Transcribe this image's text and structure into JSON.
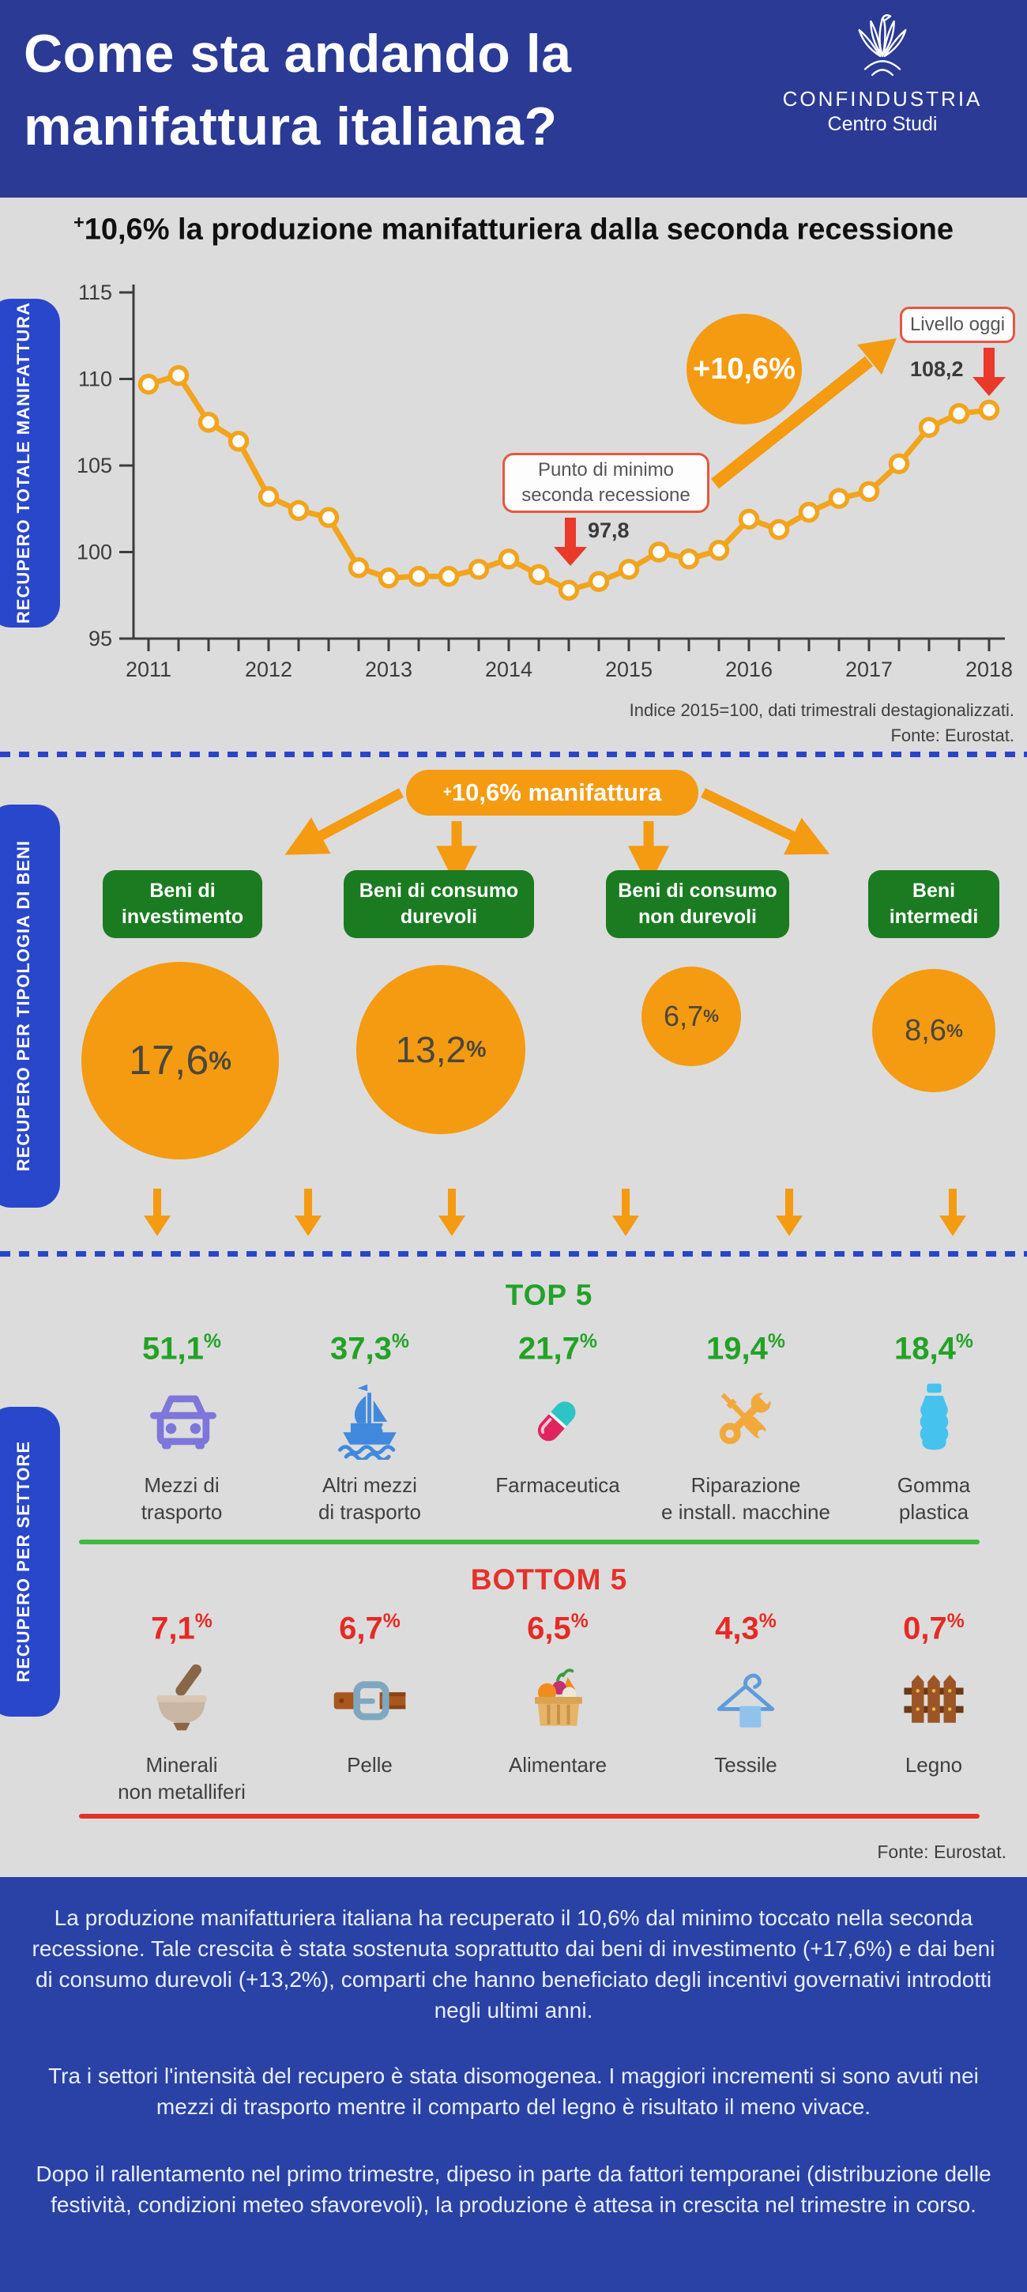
{
  "meta": {
    "plus_sign": "+",
    "percent_sign": "%"
  },
  "header": {
    "title_line1": "Come sta andando la",
    "title_line2": "manifattura italiana?",
    "logo_title": "CONFINDUSTRIA",
    "logo_subtitle": "Centro Studi"
  },
  "intro": {
    "headline": "10,6% la produzione manifatturiera dalla seconda recessione"
  },
  "chart_section": {
    "sidebar_label": "RECUPERO TOTALE MANIFATTURA",
    "min_label_line1": "Punto di minimo",
    "min_label_line2": "seconda recessione",
    "min_value": "97,8",
    "growth_badge": "+10,6%",
    "today_label": "Livello oggi",
    "today_value": "108,2",
    "note": "Indice 2015=100, dati trimestrali destagionalizzati.",
    "source": "Fonte: Eurostat."
  },
  "chart_data": {
    "type": "line",
    "title": "+10,6% la produzione manifatturiera dalla seconda recessione",
    "frequency": "quarterly",
    "x_start": "2011-Q1",
    "x_tick_labels": [
      "2011",
      "2012",
      "2013",
      "2014",
      "2015",
      "2016",
      "2017",
      "2018"
    ],
    "values": [
      109.7,
      110.2,
      107.5,
      106.4,
      103.2,
      102.4,
      102.0,
      99.1,
      98.5,
      98.6,
      98.6,
      99.0,
      99.6,
      98.7,
      97.8,
      98.3,
      99.0,
      100.0,
      99.6,
      100.1,
      101.9,
      101.3,
      102.3,
      103.1,
      103.5,
      105.1,
      107.2,
      108.0,
      108.2
    ],
    "y_ticks": [
      95,
      100,
      105,
      110,
      115
    ],
    "ylim": [
      95,
      115
    ],
    "grid": false,
    "legend": "none",
    "series_color": "#F2A41D",
    "annotations": {
      "min": {
        "x": "2014-Q3",
        "value": 97.8,
        "label": "Punto di minimo seconda recessione"
      },
      "today": {
        "x": "2018-Q1",
        "value": 108.2,
        "label": "Livello oggi"
      },
      "growth_pct": "+10,6%"
    }
  },
  "typology": {
    "sidebar_label": "RECUPERO PER TIPOLOGIA DI BENI",
    "root_label": "10,6% manifattura",
    "categories": [
      {
        "name_line1": "Beni di",
        "name_line2": "investimento",
        "value": "17,6"
      },
      {
        "name_line1": "Beni di consumo",
        "name_line2": "durevoli",
        "value": "13,2"
      },
      {
        "name_line1": "Beni di consumo",
        "name_line2": "non durevoli",
        "value": "6,7"
      },
      {
        "name_line1": "Beni",
        "name_line2": "intermedi",
        "value": "8,6"
      }
    ]
  },
  "sectors": {
    "sidebar_label": "RECUPERO PER SETTORE",
    "top_title": "TOP 5",
    "bottom_title": "BOTTOM 5",
    "source": "Fonte: Eurostat.",
    "top": [
      {
        "value": "51,1",
        "icon": "car-icon",
        "label_line1": "Mezzi di",
        "label_line2": "trasporto"
      },
      {
        "value": "37,3",
        "icon": "ship-icon",
        "label_line1": "Altri mezzi",
        "label_line2": "di trasporto"
      },
      {
        "value": "21,7",
        "icon": "pill-icon",
        "label_line1": "Farmaceutica",
        "label_line2": ""
      },
      {
        "value": "19,4",
        "icon": "tools-icon",
        "label_line1": "Riparazione",
        "label_line2": "e install. macchine"
      },
      {
        "value": "18,4",
        "icon": "bottle-icon",
        "label_line1": "Gomma",
        "label_line2": "plastica"
      }
    ],
    "bottom": [
      {
        "value": "7,1",
        "icon": "mortar-icon",
        "label_line1": "Minerali",
        "label_line2": "non metalliferi"
      },
      {
        "value": "6,7",
        "icon": "belt-icon",
        "label_line1": "Pelle",
        "label_line2": ""
      },
      {
        "value": "6,5",
        "icon": "crate-icon",
        "label_line1": "Alimentare",
        "label_line2": ""
      },
      {
        "value": "4,3",
        "icon": "hanger-icon",
        "label_line1": "Tessile",
        "label_line2": ""
      },
      {
        "value": "0,7",
        "icon": "fence-icon",
        "label_line1": "Legno",
        "label_line2": ""
      }
    ]
  },
  "footer": {
    "paragraphs": [
      "La produzione manifatturiera italiana ha recuperato il 10,6% dal minimo toccato nella seconda recessione. Tale crescita è stata sostenuta soprattutto dai beni di investimento (+17,6%) e dai beni di consumo durevoli (+13,2%), comparti che hanno beneficiato degli incentivi governativi introdotti negli ultimi anni.",
      "Tra i settori l'intensità del recupero è stata disomogenea. I maggiori incrementi si sono avuti nei mezzi di trasporto mentre il comparto del legno è risultato il meno vivace.",
      "Dopo il rallentamento nel primo trimestre, dipeso in parte da fattori temporanei (distribuzione delle festività, condizioni meteo sfavorevoli), la produzione è attesa in crescita nel trimestre in corso."
    ]
  },
  "colors": {
    "header_blue": "#2A3A95",
    "footer_blue": "#2A41A5",
    "pill_blue": "#2947CB",
    "background_gray": "#DCDCDC",
    "accent_orange": "#F49B12",
    "line_orange": "#F2A41D",
    "green_dark": "#1B7B21",
    "green_bright": "#23A226",
    "red": "#E5312B",
    "annotation_red": "#E65740"
  }
}
